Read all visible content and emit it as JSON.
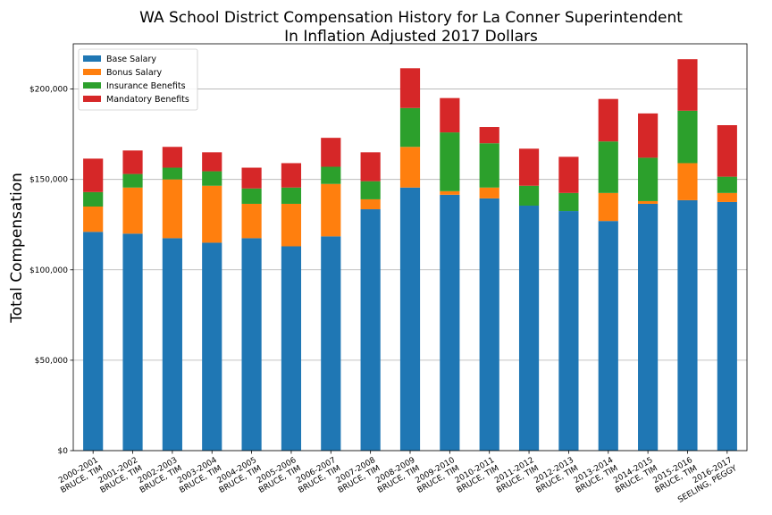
{
  "chart_data": {
    "type": "bar",
    "stacked": true,
    "title": "WA School District Compensation History for La Conner Superintendent",
    "subtitle": "In Inflation Adjusted 2017 Dollars",
    "xlabel": "",
    "ylabel": "Total Compensation",
    "ylim": [
      0,
      225000
    ],
    "yticks": [
      0,
      50000,
      100000,
      150000,
      200000
    ],
    "ytick_labels": [
      "$0",
      "$50,000",
      "$100,000",
      "$150,000",
      "$200,000"
    ],
    "grid": "horizontal",
    "legend_position": "top-left",
    "categories": [
      [
        "2000-2001",
        "BRUCE, TIM"
      ],
      [
        "2001-2002",
        "BRUCE, TIM"
      ],
      [
        "2002-2003",
        "BRUCE, TIM"
      ],
      [
        "2003-2004",
        "BRUCE, TIM"
      ],
      [
        "2004-2005",
        "BRUCE, TIM"
      ],
      [
        "2005-2006",
        "BRUCE, TIM"
      ],
      [
        "2006-2007",
        "BRUCE, TIM"
      ],
      [
        "2007-2008",
        "BRUCE, TIM"
      ],
      [
        "2008-2009",
        "BRUCE, TIM"
      ],
      [
        "2009-2010",
        "BRUCE, TIM"
      ],
      [
        "2010-2011",
        "BRUCE, TIM"
      ],
      [
        "2011-2012",
        "BRUCE, TIM"
      ],
      [
        "2012-2013",
        "BRUCE, TIM"
      ],
      [
        "2013-2014",
        "BRUCE, TIM"
      ],
      [
        "2014-2015",
        "BRUCE, TIM"
      ],
      [
        "2015-2016",
        "BRUCE, TIM"
      ],
      [
        "2016-2017",
        "SEELING, PEGGY"
      ]
    ],
    "series": [
      {
        "name": "Base Salary",
        "color": "#1f77b4",
        "values": [
          121000,
          120000,
          117500,
          115000,
          117500,
          113000,
          118500,
          133500,
          145500,
          141500,
          139500,
          135500,
          132500,
          127000,
          136500,
          138500,
          137500
        ]
      },
      {
        "name": "Bonus Salary",
        "color": "#ff7f0e",
        "values": [
          14000,
          25500,
          32500,
          31500,
          19000,
          23500,
          29000,
          5500,
          22500,
          2000,
          6000,
          0,
          0,
          15500,
          1500,
          20500,
          5000
        ]
      },
      {
        "name": "Insurance Benefits",
        "color": "#2ca02c",
        "values": [
          8000,
          7500,
          6500,
          8000,
          8500,
          9000,
          9500,
          10000,
          21500,
          32500,
          24500,
          11000,
          10000,
          28500,
          24000,
          29000,
          9000
        ]
      },
      {
        "name": "Mandatory Benefits",
        "color": "#d62728",
        "values": [
          18500,
          13000,
          11500,
          10500,
          11500,
          13500,
          16000,
          16000,
          22000,
          19000,
          9000,
          20500,
          20000,
          23500,
          24500,
          28500,
          28500
        ]
      }
    ]
  }
}
